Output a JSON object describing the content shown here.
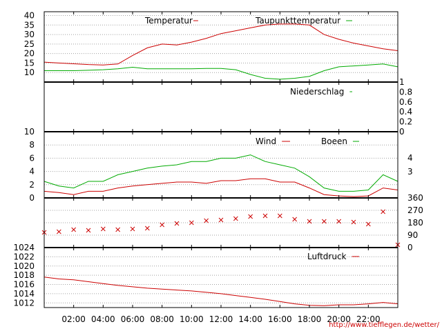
{
  "footer_url": "http://www.tiefflegen.de/wetter/",
  "x_ticks": [
    "02:00",
    "04:00",
    "06:00",
    "08:00",
    "10:00",
    "12:00",
    "14:00",
    "16:00",
    "18:00",
    "20:00",
    "22:00"
  ],
  "colors": {
    "red": "#cc0000",
    "green": "#00aa00",
    "grid": "#a0a0a0"
  },
  "chart_data": [
    {
      "type": "line",
      "x_hours": [
        0,
        1,
        2,
        3,
        4,
        5,
        6,
        7,
        8,
        9,
        10,
        11,
        12,
        13,
        14,
        15,
        16,
        17,
        18,
        19,
        20,
        21,
        22,
        23,
        24
      ],
      "series": [
        {
          "name": "Temperatur",
          "color": "#cc0000",
          "values": [
            15.5,
            15,
            14.6,
            14.2,
            14,
            14.5,
            19,
            23,
            25,
            24.5,
            26,
            28,
            30.5,
            32,
            33.5,
            35,
            35.5,
            35.5,
            35,
            30,
            27.5,
            25.5,
            24,
            22.5,
            21.5
          ]
        },
        {
          "name": "Taupunkttemperatur",
          "color": "#00aa00",
          "values": [
            11,
            11,
            11,
            11.2,
            11.5,
            12,
            12.8,
            12,
            12,
            12,
            12,
            12.2,
            12.2,
            11.5,
            9,
            7,
            6.5,
            7,
            8,
            11,
            13,
            13.5,
            14,
            14.5,
            13
          ]
        }
      ],
      "yticks": [
        "10",
        "15",
        "20",
        "25",
        "30",
        "35",
        "40"
      ],
      "ylim": [
        5,
        42
      ]
    },
    {
      "type": "line",
      "series": [
        {
          "name": "Niederschlag",
          "color": "#00aa00",
          "values": [
            0,
            0
          ]
        }
      ],
      "yticks": [
        "0",
        "0.2",
        "0.4",
        "0.6",
        "0.8",
        "1"
      ],
      "ylim": [
        0,
        1
      ]
    },
    {
      "type": "line",
      "x_hours": [
        0,
        1,
        2,
        3,
        4,
        5,
        6,
        7,
        8,
        9,
        10,
        11,
        12,
        13,
        14,
        15,
        16,
        17,
        18,
        19,
        20,
        21,
        22,
        23,
        24
      ],
      "series": [
        {
          "name": "Wind",
          "color": "#cc0000",
          "values": [
            1,
            0.8,
            0.5,
            1,
            1,
            1.5,
            1.8,
            2,
            2.2,
            2.4,
            2.4,
            2.2,
            2.6,
            2.6,
            2.9,
            2.9,
            2.4,
            2.4,
            1.5,
            0.5,
            0.3,
            0.2,
            0.3,
            1.5,
            1.2
          ]
        },
        {
          "name": "Boeen",
          "color": "#00aa00",
          "values": [
            2.5,
            1.8,
            1.5,
            2.5,
            2.5,
            3.5,
            4,
            4.5,
            4.8,
            5,
            5.5,
            5.5,
            6,
            6,
            6.5,
            5.5,
            5,
            4.5,
            3.2,
            1.5,
            1,
            1,
            1.2,
            3.5,
            2.5
          ]
        }
      ],
      "yticks": [
        "0",
        "2",
        "4",
        "6",
        "8",
        "10"
      ],
      "ylim": [
        0,
        10
      ],
      "right_ticks": [
        "3",
        "4"
      ]
    },
    {
      "type": "scatter",
      "x_hours": [
        0,
        1,
        2,
        3,
        4,
        5,
        6,
        7,
        8,
        9,
        10,
        11,
        12,
        13,
        14,
        15,
        16,
        17,
        18,
        19,
        20,
        21,
        22,
        23,
        24
      ],
      "series": [
        {
          "name": "",
          "color": "#cc0000",
          "values": [
            110,
            115,
            130,
            125,
            135,
            130,
            135,
            140,
            165,
            175,
            180,
            195,
            200,
            210,
            225,
            230,
            230,
            205,
            190,
            190,
            190,
            185,
            170,
            260,
            20
          ]
        }
      ],
      "right_ticks": [
        "0",
        "90",
        "180",
        "270",
        "360"
      ],
      "ylim": [
        0,
        360
      ]
    },
    {
      "type": "line",
      "x_hours": [
        0,
        1,
        2,
        3,
        4,
        5,
        6,
        7,
        8,
        9,
        10,
        11,
        12,
        13,
        14,
        15,
        16,
        17,
        18,
        19,
        20,
        21,
        22,
        23,
        24
      ],
      "series": [
        {
          "name": "Luftdruck",
          "color": "#cc0000",
          "values": [
            1017.6,
            1017.2,
            1017,
            1016.6,
            1016.2,
            1015.8,
            1015.5,
            1015.2,
            1015,
            1014.8,
            1014.6,
            1014.3,
            1014,
            1013.6,
            1013.2,
            1012.8,
            1012.3,
            1011.8,
            1011.5,
            1011.4,
            1011.6,
            1011.6,
            1011.8,
            1012.1,
            1011.8
          ]
        }
      ],
      "yticks": [
        "1012",
        "1014",
        "1016",
        "1018",
        "1020",
        "1022",
        "1024"
      ],
      "ylim": [
        1011,
        1024
      ]
    }
  ]
}
